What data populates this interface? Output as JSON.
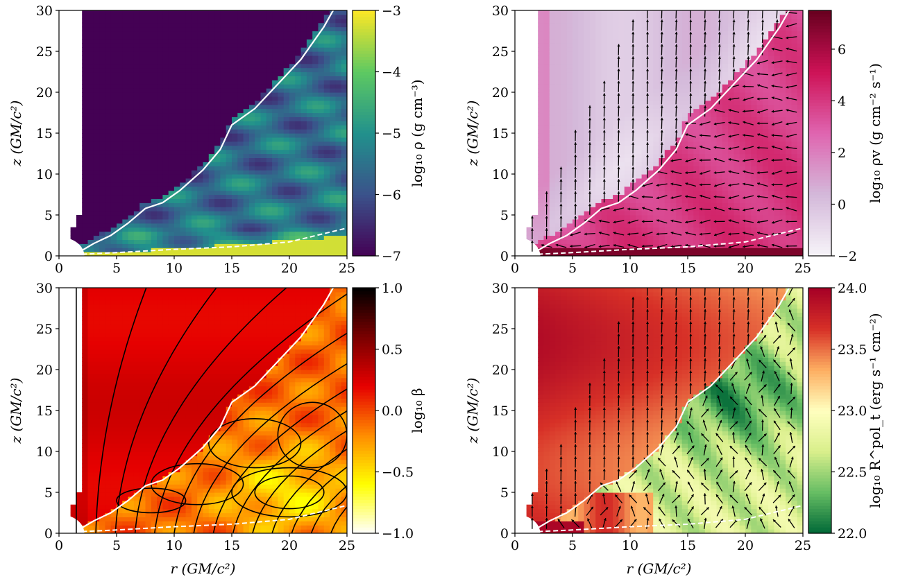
{
  "figure": {
    "panels": [
      {
        "id": "density",
        "xlabel": "",
        "ylabel": "z   (GM/c²)",
        "colorbar": {
          "label": "log₁₀ ρ   (g cm⁻³)",
          "range": [
            -7,
            -3
          ],
          "ticks": [
            "−3",
            "−4",
            "−5",
            "−6",
            "−7"
          ],
          "colormap": [
            "#440154",
            "#3b528b",
            "#21918c",
            "#5ec962",
            "#fde725"
          ]
        },
        "overlays": [
          "white-solid-contour",
          "white-dashed-contour"
        ]
      },
      {
        "id": "momentum",
        "xlabel": "",
        "ylabel": "z   (GM/c²)",
        "colorbar": {
          "label": "log₁₀ ρv   (g cm⁻² s⁻¹)",
          "range": [
            -2,
            7.5
          ],
          "ticks": [
            "6",
            "4",
            "2",
            "0",
            "−2"
          ],
          "colormap": [
            "#f7f4f9",
            "#d4b9da",
            "#df65b0",
            "#ce1256",
            "#67001f"
          ]
        },
        "overlays": [
          "velocity-arrows",
          "white-solid-contour",
          "white-dashed-contour"
        ]
      },
      {
        "id": "beta",
        "xlabel": "r   (GM/c²)",
        "ylabel": "z   (GM/c²)",
        "colorbar": {
          "label": "log₁₀ β",
          "range": [
            -1,
            1
          ],
          "ticks": [
            "1.0",
            "0.5",
            "0.0",
            "−0.5",
            "−1.0"
          ],
          "colormap": [
            "#ffffff",
            "#ffff00",
            "#ff8c00",
            "#e60000",
            "#7a0000",
            "#000000"
          ]
        },
        "overlays": [
          "black-field-lines",
          "white-solid-contour",
          "white-dashed-contour"
        ]
      },
      {
        "id": "stress",
        "xlabel": "r   (GM/c²)",
        "ylabel": "z   (GM/c²)",
        "colorbar": {
          "label": "log₁₀ R^pol_t   (erg s⁻¹ cm⁻²)",
          "range": [
            22,
            24
          ],
          "ticks": [
            "24.0",
            "23.5",
            "23.0",
            "22.5",
            "22.0"
          ],
          "colormap": [
            "#006837",
            "#66bd63",
            "#d9ef8b",
            "#ffffbf",
            "#fdae61",
            "#d73027",
            "#a50026"
          ]
        },
        "overlays": [
          "flux-arrows",
          "white-solid-contour",
          "white-dashed-contour"
        ]
      }
    ]
  },
  "chart_data": [
    {
      "type": "heatmap",
      "xlabel": "",
      "ylabel": "z (GM/c²)",
      "xlim": [
        0,
        25
      ],
      "ylim": [
        0,
        30
      ],
      "xticks": [
        0,
        5,
        10,
        15,
        20,
        25
      ],
      "yticks": [
        0,
        5,
        10,
        15,
        20,
        25,
        30
      ],
      "colorbar_label": "log₁₀ ρ (g cm⁻³)",
      "colorbar_range": [
        -7,
        -3
      ],
      "solid_contour": [
        [
          1.8,
          0.5
        ],
        [
          3,
          1.5
        ],
        [
          4.5,
          2.5
        ],
        [
          6,
          4
        ],
        [
          7.5,
          5.8
        ],
        [
          9,
          6.5
        ],
        [
          10.5,
          8
        ],
        [
          12.5,
          10.5
        ],
        [
          14,
          13
        ],
        [
          15,
          16
        ],
        [
          17,
          18
        ],
        [
          19,
          21
        ],
        [
          21,
          24
        ],
        [
          23,
          28
        ],
        [
          23.8,
          30
        ]
      ],
      "dashed_contour": [
        [
          2,
          0.2
        ],
        [
          5,
          0.4
        ],
        [
          10,
          0.8
        ],
        [
          15,
          1.1
        ],
        [
          20,
          1.7
        ],
        [
          25,
          3.4
        ]
      ]
    },
    {
      "type": "heatmap",
      "xlabel": "",
      "ylabel": "z (GM/c²)",
      "xlim": [
        0,
        25
      ],
      "ylim": [
        0,
        30
      ],
      "xticks": [
        0,
        5,
        10,
        15,
        20,
        25
      ],
      "yticks": [
        0,
        5,
        10,
        15,
        20,
        25,
        30
      ],
      "colorbar_label": "log₁₀ ρv (g cm⁻² s⁻¹)",
      "colorbar_range": [
        -2,
        7.5
      ],
      "solid_contour": [
        [
          1.8,
          0.5
        ],
        [
          3,
          1.5
        ],
        [
          4.5,
          2.5
        ],
        [
          6,
          4
        ],
        [
          7.5,
          5.8
        ],
        [
          9,
          6.5
        ],
        [
          10.5,
          8
        ],
        [
          12.5,
          10.5
        ],
        [
          14,
          13
        ],
        [
          15,
          16
        ],
        [
          17,
          18
        ],
        [
          19,
          21
        ],
        [
          21,
          24
        ],
        [
          23,
          28
        ],
        [
          23.8,
          30
        ]
      ],
      "dashed_contour": [
        [
          2,
          0.2
        ],
        [
          5,
          0.4
        ],
        [
          10,
          0.8
        ],
        [
          15,
          1.1
        ],
        [
          20,
          1.7
        ],
        [
          25,
          3.4
        ]
      ]
    },
    {
      "type": "heatmap",
      "xlabel": "r (GM/c²)",
      "ylabel": "z (GM/c²)",
      "xlim": [
        0,
        25
      ],
      "ylim": [
        0,
        30
      ],
      "xticks": [
        0,
        5,
        10,
        15,
        20,
        25
      ],
      "yticks": [
        0,
        5,
        10,
        15,
        20,
        25,
        30
      ],
      "colorbar_label": "log₁₀ β",
      "colorbar_range": [
        -1,
        1
      ],
      "solid_contour": [
        [
          1.8,
          0.5
        ],
        [
          3,
          1.5
        ],
        [
          4.5,
          2.5
        ],
        [
          6,
          4
        ],
        [
          7.5,
          5.8
        ],
        [
          9,
          6.5
        ],
        [
          10.5,
          8
        ],
        [
          12.5,
          10.5
        ],
        [
          14,
          13
        ],
        [
          15,
          16
        ],
        [
          17,
          18
        ],
        [
          19,
          21
        ],
        [
          21,
          24
        ],
        [
          23,
          28
        ],
        [
          23.8,
          30
        ]
      ],
      "dashed_contour": [
        [
          2,
          0.2
        ],
        [
          5,
          0.4
        ],
        [
          10,
          0.8
        ],
        [
          15,
          1.1
        ],
        [
          20,
          1.7
        ],
        [
          25,
          3.4
        ]
      ]
    },
    {
      "type": "heatmap",
      "xlabel": "r (GM/c²)",
      "ylabel": "z (GM/c²)",
      "xlim": [
        0,
        25
      ],
      "ylim": [
        0,
        30
      ],
      "xticks": [
        0,
        5,
        10,
        15,
        20,
        25
      ],
      "yticks": [
        0,
        5,
        10,
        15,
        20,
        25,
        30
      ],
      "colorbar_label": "log₁₀ R^pol_t (erg s⁻¹ cm⁻²)",
      "colorbar_range": [
        22,
        24
      ],
      "solid_contour": [
        [
          1.8,
          0.5
        ],
        [
          3,
          1.5
        ],
        [
          4.5,
          2.5
        ],
        [
          6,
          4
        ],
        [
          7.5,
          5.8
        ],
        [
          9,
          6.5
        ],
        [
          10.5,
          8
        ],
        [
          12.5,
          10.5
        ],
        [
          14,
          13
        ],
        [
          15,
          16
        ],
        [
          17,
          18
        ],
        [
          19,
          21
        ],
        [
          21,
          24
        ],
        [
          23,
          28
        ],
        [
          23.8,
          30
        ]
      ],
      "dashed_contour": [
        [
          2,
          0.2
        ],
        [
          5,
          0.4
        ],
        [
          10,
          0.8
        ],
        [
          15,
          1.1
        ],
        [
          20,
          1.7
        ],
        [
          25,
          3.4
        ]
      ]
    }
  ]
}
